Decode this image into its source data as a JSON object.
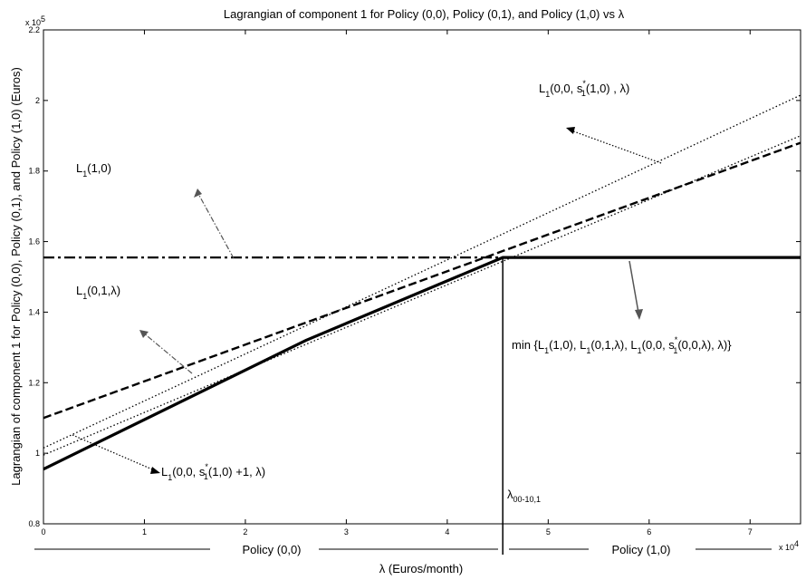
{
  "chart_data": {
    "type": "line",
    "title": "Lagrangian of component 1 for Policy (0,0), Policy (0,1), and Policy (1,0) vs λ",
    "xlabel": "λ (Euros/month)",
    "ylabel": "Lagrangian of component 1 for Policy (0,0), Policy (0,1), and Policy (1,0) (Euros)",
    "x_scale_label": "x 10",
    "x_scale_exp": "4",
    "y_scale_label": "x 10",
    "y_scale_exp": "5",
    "xlim": [
      0,
      7.5
    ],
    "ylim": [
      0.8,
      2.2
    ],
    "x_ticks": [
      "0",
      "1",
      "2",
      "3",
      "4",
      "5",
      "6",
      "7"
    ],
    "y_ticks": [
      "0.8",
      "1",
      "1.2",
      "1.4",
      "1.6",
      "1.8",
      "2",
      "2.2"
    ],
    "series": [
      {
        "key": "l10",
        "style": "dashdot",
        "x": [
          0,
          7.5
        ],
        "y": [
          1.555,
          1.555
        ]
      },
      {
        "key": "l01",
        "style": "dashed",
        "x": [
          0,
          7.5
        ],
        "y": [
          1.1,
          1.88
        ]
      },
      {
        "key": "l00a",
        "style": "dotted",
        "x": [
          0,
          7.5
        ],
        "y": [
          1.015,
          2.015
        ]
      },
      {
        "key": "l00b",
        "style": "dotted",
        "x": [
          0,
          7.5
        ],
        "y": [
          0.995,
          1.9
        ]
      },
      {
        "key": "lmin",
        "style": "solid-thick",
        "x": [
          0,
          2.6,
          4.55,
          7.5
        ],
        "y": [
          0.955,
          1.32,
          1.555,
          1.555
        ]
      }
    ],
    "vertical_line": {
      "x": 4.55,
      "label": "λ",
      "label_sub": "00-10,1"
    },
    "annotations": [
      {
        "key": "a10",
        "main": "L",
        "sub1": "1",
        "rest": "(1,0)"
      },
      {
        "key": "a01",
        "main": "L",
        "sub1": "1",
        "rest": "(0,1,λ)"
      },
      {
        "key": "a00a",
        "main": "L",
        "sub1": "1",
        "rest1": "(0,0, s",
        "sup": "*",
        "sub2": "1",
        "rest2": "(1,0) , λ)"
      },
      {
        "key": "a00b",
        "main": "L",
        "sub1": "1",
        "rest1": "(0,0, s",
        "sup": "*",
        "sub2": "1",
        "rest2": "(1,0) +1, λ)"
      },
      {
        "key": "amin",
        "parts": [
          "min {L",
          "1",
          "(1,0), L",
          "1",
          "(0,1,λ), L",
          "1",
          "(0,0, s",
          "*",
          "1",
          "(0,0,λ), λ)}"
        ]
      }
    ],
    "regions": [
      {
        "label": "Policy (0,0)"
      },
      {
        "label": "Policy (1,0)"
      }
    ]
  }
}
